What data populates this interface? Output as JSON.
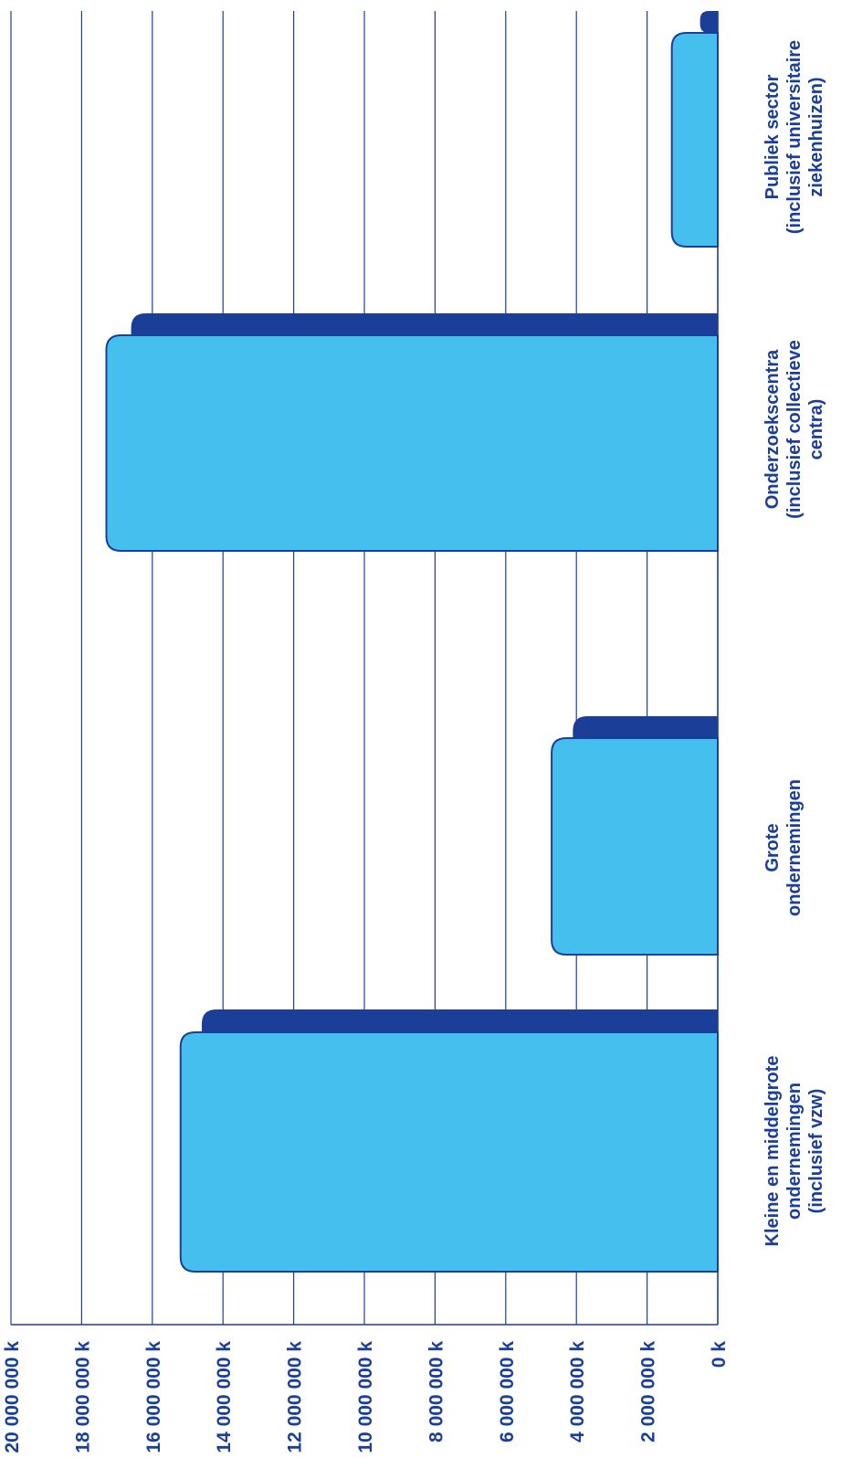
{
  "chart_data": {
    "type": "bar",
    "orientation": "horizontal-rotated",
    "categories": [
      [
        "Kleine en middelgrote",
        "ondernemingen",
        "(inclusief vzw)"
      ],
      [
        "Grote",
        "ondernemingen"
      ],
      [
        "Onderzoekscentra",
        "(inclusief collectieve",
        "centra)"
      ],
      [
        "Publiek sector",
        "(inclusief universitaire",
        "ziekenhuizen)"
      ]
    ],
    "series": [
      {
        "values": [
          14600000,
          4100000,
          16600000,
          500000
        ],
        "color": "#1b3f98"
      },
      {
        "values": [
          15200000,
          4700000,
          17300000,
          1300000
        ],
        "color": "#45bfed"
      }
    ],
    "ticks": [
      0,
      2000000,
      4000000,
      6000000,
      8000000,
      10000000,
      12000000,
      14000000,
      16000000,
      18000000,
      20000000
    ],
    "tick_labels": [
      "0 k",
      "2 000 000 k",
      "4 000 000 k",
      "6 000 000 k",
      "8 000 000 k",
      "10 000 000 k",
      "12 000 000 k",
      "14 000 000 k",
      "16 000 000 k",
      "18 000 000 k",
      "20 000 000 k"
    ],
    "ylim": [
      0,
      20000000
    ],
    "grid": true,
    "colors": {
      "axis": "#1a3f9a",
      "text": "#1a3f9a"
    }
  }
}
